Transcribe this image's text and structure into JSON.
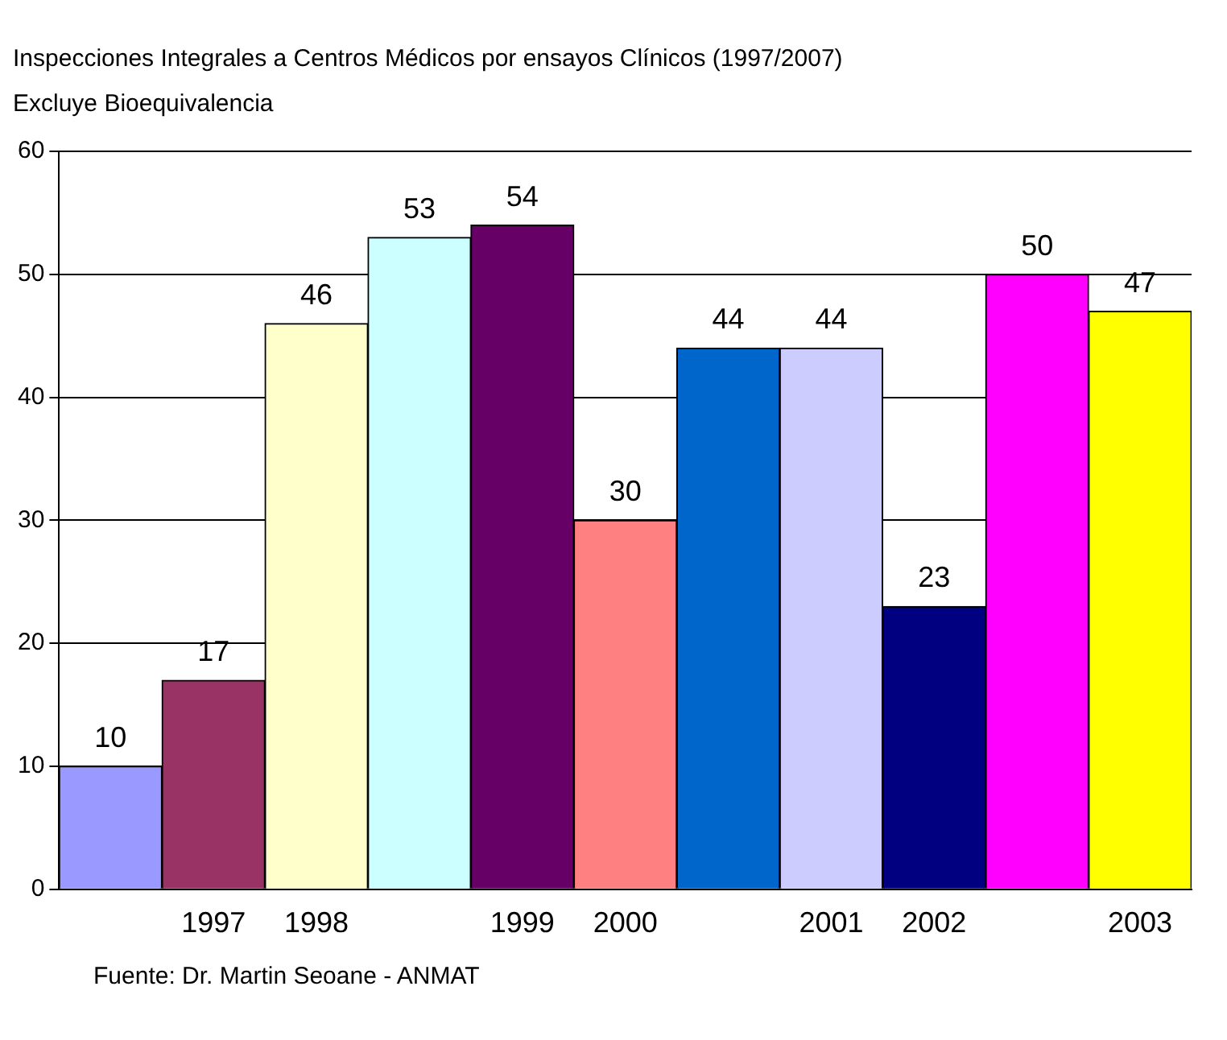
{
  "chart_data": {
    "type": "bar",
    "title": "Inspecciones Integrales a Centros Médicos por ensayos Clínicos (1997/2007)",
    "subtitle": "Excluye Bioequivalencia",
    "categories": [
      null,
      "1997",
      "1998",
      null,
      "1999",
      "2000",
      null,
      "2001",
      "2002",
      null,
      "2003"
    ],
    "values": [
      10,
      17,
      46,
      53,
      54,
      30,
      44,
      44,
      23,
      50,
      47
    ],
    "colors": [
      "#9999ff",
      "#993366",
      "#ffffcc",
      "#ccffff",
      "#660066",
      "#ff8080",
      "#0066cc",
      "#ccccff",
      "#000080",
      "#ff00ff",
      "#ffff00"
    ],
    "ylim": [
      0,
      60
    ],
    "yticks": [
      0,
      10,
      20,
      30,
      40,
      50,
      60
    ],
    "grid": "y",
    "data_labels": true,
    "annotations": [
      "Fuente: Dr. Martin Seoane - ANMAT"
    ]
  }
}
